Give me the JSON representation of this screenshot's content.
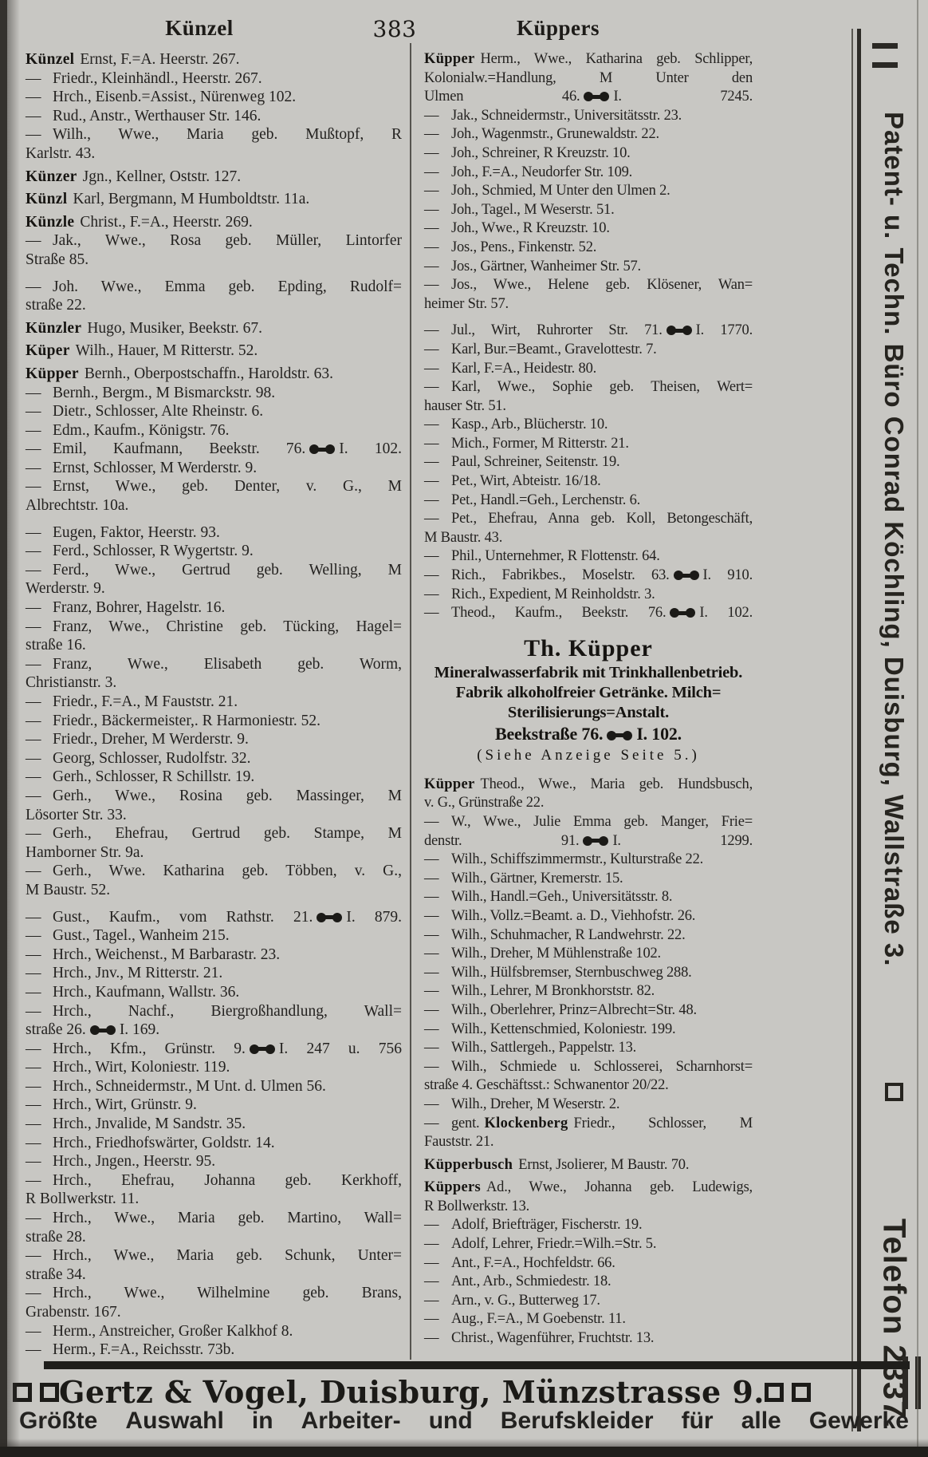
{
  "header": {
    "left_keyword": "Künzel",
    "page_number": "383",
    "right_keyword": "Küppers"
  },
  "columns": {
    "left": [
      {
        "b": "Künzel",
        "lines": [
          "Ernst, F.=A. Heerstr. 267."
        ]
      },
      {
        "d": 1,
        "lines": [
          "Friedr., Kleinhändl., Heerstr. 267."
        ]
      },
      {
        "d": 1,
        "lines": [
          "Hrch., Eisenb.=Assist., Nürenweg 102."
        ]
      },
      {
        "d": 1,
        "lines": [
          "Rud., Anstr., Werthauser Str. 146."
        ]
      },
      {
        "d": 1,
        "lines": [
          "Wilh., Wwe., Maria geb. Mußtopf, R",
          "Karlstr. 43."
        ]
      },
      {
        "b": "Künzer",
        "lines": [
          "Jgn., Kellner, Oststr. 127."
        ]
      },
      {
        "b": "Künzl",
        "lines": [
          "Karl, Bergmann, M Humboldtstr. 11a."
        ]
      },
      {
        "b": "Künzle",
        "lines": [
          "Christ., F.=A., Heerstr. 269."
        ]
      },
      {
        "d": 1,
        "lines": [
          "Jak., Wwe., Rosa geb. Müller, Lintorfer",
          "Straße 85."
        ]
      },
      {
        "d": 1,
        "g": 1,
        "lines": [
          "Joh. Wwe., Emma geb. Epding, Rudolf=",
          "straße 22."
        ]
      },
      {
        "b": "Künzler",
        "lines": [
          "Hugo, Musiker, Beekstr. 67."
        ]
      },
      {
        "b": "Küper",
        "lines": [
          "Wilh., Hauer, M Ritterstr. 52."
        ]
      },
      {
        "b": "Küpper",
        "lines": [
          "Bernh., Oberpostschaffn., Haroldstr. 63."
        ]
      },
      {
        "d": 1,
        "lines": [
          "Bernh., Bergm., M Bismarckstr. 98."
        ]
      },
      {
        "d": 1,
        "lines": [
          "Dietr., Schlosser, Alte Rheinstr. 6."
        ]
      },
      {
        "d": 1,
        "lines": [
          "Edm., Kaufm., Königstr. 76."
        ]
      },
      {
        "d": 1,
        "j": 1,
        "lines": [
          "Emil, Kaufmann, Beekstr. 76."
        ],
        "p": "I. 102."
      },
      {
        "d": 1,
        "lines": [
          "Ernst, Schlosser, M Werderstr. 9."
        ]
      },
      {
        "d": 1,
        "lines": [
          "Ernst, Wwe., geb. Denter, v. G., M",
          "Albrechtstr. 10a."
        ]
      },
      {
        "d": 1,
        "g": 1,
        "lines": [
          "Eugen, Faktor, Heerstr. 93."
        ]
      },
      {
        "d": 1,
        "lines": [
          "Ferd., Schlosser, R Wygertstr. 9."
        ]
      },
      {
        "d": 1,
        "lines": [
          "Ferd., Wwe., Gertrud geb. Welling, M",
          "Werderstr. 9."
        ]
      },
      {
        "d": 1,
        "lines": [
          "Franz, Bohrer, Hagelstr. 16."
        ]
      },
      {
        "d": 1,
        "lines": [
          "Franz, Wwe., Christine geb. Tücking, Hagel=",
          "straße 16."
        ]
      },
      {
        "d": 1,
        "lines": [
          "Franz, Wwe., Elisabeth geb. Worm,",
          "Christianstr. 3."
        ]
      },
      {
        "d": 1,
        "lines": [
          "Friedr., F.=A., M Fauststr. 21."
        ]
      },
      {
        "d": 1,
        "lines": [
          "Friedr., Bäckermeister,. R Harmoniestr. 52."
        ]
      },
      {
        "d": 1,
        "lines": [
          "Friedr., Dreher, M Werderstr. 9."
        ]
      },
      {
        "d": 1,
        "lines": [
          "Georg, Schlosser, Rudolfstr. 32."
        ]
      },
      {
        "d": 1,
        "lines": [
          "Gerh., Schlosser, R Schillstr. 19."
        ]
      },
      {
        "d": 1,
        "lines": [
          "Gerh., Wwe., Rosina geb. Massinger, M",
          "Lösorter Str. 33."
        ]
      },
      {
        "d": 1,
        "lines": [
          "Gerh., Ehefrau, Gertrud geb. Stampe, M",
          "Hamborner Str. 9a."
        ]
      },
      {
        "d": 1,
        "lines": [
          "Gerh., Wwe. Katharina geb. Többen, v. G.,",
          "M Baustr. 52."
        ]
      },
      {
        "d": 1,
        "g": 1,
        "j": 1,
        "lines": [
          "Gust., Kaufm., vom Rathstr. 21."
        ],
        "p": "I. 879."
      },
      {
        "d": 1,
        "lines": [
          "Gust., Tagel., Wanheim 215."
        ]
      },
      {
        "d": 1,
        "lines": [
          "Hrch., Weichenst., M Barbarastr. 23."
        ]
      },
      {
        "d": 1,
        "lines": [
          "Hrch., Jnv., M Ritterstr. 21."
        ]
      },
      {
        "d": 1,
        "lines": [
          "Hrch., Kaufmann, Wallstr. 36."
        ]
      },
      {
        "d": 1,
        "lines": [
          "Hrch., Nachf., Biergroßhandlung, Wall=",
          "straße 26."
        ],
        "p": "I. 169."
      },
      {
        "d": 1,
        "j": 1,
        "lines": [
          "Hrch., Kfm., Grünstr. 9."
        ],
        "p": "I. 247 u. 756"
      },
      {
        "d": 1,
        "lines": [
          "Hrch., Wirt, Koloniestr. 119."
        ]
      },
      {
        "d": 1,
        "lines": [
          "Hrch., Schneidermstr., M Unt. d. Ulmen 56."
        ]
      },
      {
        "d": 1,
        "lines": [
          "Hrch., Wirt, Grünstr. 9."
        ]
      },
      {
        "d": 1,
        "lines": [
          "Hrch., Jnvalide, M Sandstr. 35."
        ]
      },
      {
        "d": 1,
        "lines": [
          "Hrch., Friedhofswärter, Goldstr. 14."
        ]
      },
      {
        "d": 1,
        "lines": [
          "Hrch., Jngen., Heerstr. 95."
        ]
      },
      {
        "d": 1,
        "lines": [
          "Hrch., Ehefrau, Johanna geb. Kerkhoff,",
          "R Bollwerkstr. 11."
        ]
      },
      {
        "d": 1,
        "lines": [
          "Hrch., Wwe., Maria geb. Martino, Wall=",
          "straße 28."
        ]
      },
      {
        "d": 1,
        "lines": [
          "Hrch., Wwe., Maria geb. Schunk, Unter=",
          "straße 34."
        ]
      },
      {
        "d": 1,
        "lines": [
          "Hrch., Wwe., Wilhelmine geb. Brans,",
          "Grabenstr. 167."
        ]
      },
      {
        "d": 1,
        "lines": [
          "Herm., Anstreicher, Großer Kalkhof 8."
        ]
      },
      {
        "d": 1,
        "lines": [
          "Herm., F.=A., Reichsstr. 73b."
        ]
      }
    ],
    "right": [
      {
        "b": "Küpper",
        "j": 1,
        "lines": [
          "Herm., Wwe., Katharina geb. Schlipper,",
          "Kolonialw.=Handlung, M Unter den",
          "Ulmen 46."
        ],
        "p": "I. 7245."
      },
      {
        "d": 1,
        "lines": [
          "Jak., Schneidermstr., Universitätsstr. 23."
        ]
      },
      {
        "d": 1,
        "lines": [
          "Joh., Wagenmstr., Grunewaldstr. 22."
        ]
      },
      {
        "d": 1,
        "lines": [
          "Joh., Schreiner, R Kreuzstr. 10."
        ]
      },
      {
        "d": 1,
        "lines": [
          "Joh., F.=A., Neudorfer Str. 109."
        ]
      },
      {
        "d": 1,
        "lines": [
          "Joh., Schmied, M Unter den Ulmen 2."
        ]
      },
      {
        "d": 1,
        "lines": [
          "Joh., Tagel., M Weserstr. 51."
        ]
      },
      {
        "d": 1,
        "lines": [
          "Joh., Wwe., R Kreuzstr. 10."
        ]
      },
      {
        "d": 1,
        "lines": [
          "Jos., Pens., Finkenstr. 52."
        ]
      },
      {
        "d": 1,
        "lines": [
          "Jos., Gärtner, Wanheimer Str. 57."
        ]
      },
      {
        "d": 1,
        "lines": [
          "Jos., Wwe., Helene geb. Klösener, Wan=",
          "heimer Str. 57."
        ]
      },
      {
        "d": 1,
        "g": 1,
        "j": 1,
        "lines": [
          "Jul., Wirt, Ruhrorter Str. 71."
        ],
        "p": "I. 1770."
      },
      {
        "d": 1,
        "lines": [
          "Karl, Bur.=Beamt., Gravelottestr. 7."
        ]
      },
      {
        "d": 1,
        "lines": [
          "Karl, F.=A., Heidestr. 80."
        ]
      },
      {
        "d": 1,
        "lines": [
          "Karl, Wwe., Sophie geb. Theisen, Wert=",
          "hauser Str. 51."
        ]
      },
      {
        "d": 1,
        "lines": [
          "Kasp., Arb., Blücherstr. 10."
        ]
      },
      {
        "d": 1,
        "lines": [
          "Mich., Former, M Ritterstr. 21."
        ]
      },
      {
        "d": 1,
        "lines": [
          "Paul, Schreiner, Seitenstr. 19."
        ]
      },
      {
        "d": 1,
        "lines": [
          "Pet., Wirt, Abteistr. 16/18."
        ]
      },
      {
        "d": 1,
        "lines": [
          "Pet., Handl.=Geh., Lerchenstr. 6."
        ]
      },
      {
        "d": 1,
        "lines": [
          "Pet., Ehefrau, Anna geb. Koll, Betongeschäft,",
          "M Baustr. 43."
        ]
      },
      {
        "d": 1,
        "lines": [
          "Phil., Unternehmer, R Flottenstr. 64."
        ]
      },
      {
        "d": 1,
        "j": 1,
        "lines": [
          "Rich., Fabrikbes., Moselstr. 63."
        ],
        "p": "I. 910."
      },
      {
        "d": 1,
        "lines": [
          "Rich., Expedient, M Reinholdstr. 3."
        ]
      },
      {
        "d": 1,
        "j": 1,
        "lines": [
          "Theod., Kaufm., Beekstr. 76."
        ],
        "p": "I. 102."
      },
      {
        "type": "ad",
        "title": "Th. Küpper",
        "lines": [
          "Mineralwasserfabrik mit Trinkhallenbetrieb.",
          "Fabrik alkoholfreier Getränke. Milch=",
          "Sterilisierungs=Anstalt."
        ],
        "address": "Beekstraße 76.",
        "phone": "I. 102.",
        "note": "(Siehe Anzeige Seite 5.)"
      },
      {
        "b": "Küpper",
        "lines": [
          "Theod., Wwe., Maria geb. Hundsbusch,",
          "v. G., Grünstraße 22."
        ]
      },
      {
        "d": 1,
        "j": 1,
        "lines": [
          "W., Wwe., Julie Emma geb. Manger, Frie=",
          "denstr. 91."
        ],
        "p": "I. 1299."
      },
      {
        "d": 1,
        "lines": [
          "Wilh., Schiffszimmermstr., Kulturstraße 22."
        ]
      },
      {
        "d": 1,
        "lines": [
          "Wilh., Gärtner, Kremerstr. 15."
        ]
      },
      {
        "d": 1,
        "lines": [
          "Wilh., Handl.=Geh., Universitätsstr. 8."
        ]
      },
      {
        "d": 1,
        "lines": [
          "Wilh., Vollz.=Beamt. a. D., Viehhofstr. 26."
        ]
      },
      {
        "d": 1,
        "lines": [
          "Wilh., Schuhmacher, R Landwehrstr. 22."
        ]
      },
      {
        "d": 1,
        "lines": [
          "Wilh., Dreher, M Mühlenstraße 102."
        ]
      },
      {
        "d": 1,
        "lines": [
          "Wilh., Hülfsbremser, Sternbuschweg 288."
        ]
      },
      {
        "d": 1,
        "lines": [
          "Wilh., Lehrer, M Bronkhorststr. 82."
        ]
      },
      {
        "d": 1,
        "lines": [
          "Wilh., Oberlehrer, Prinz=Albrecht=Str. 48."
        ]
      },
      {
        "d": 1,
        "lines": [
          "Wilh., Kettenschmied, Koloniestr. 199."
        ]
      },
      {
        "d": 1,
        "lines": [
          "Wilh., Sattlergeh., Pappelstr. 13."
        ]
      },
      {
        "d": 1,
        "lines": [
          "Wilh., Schmiede u. Schlosserei, Scharnhorst=",
          "straße 4. Geschäftsst.: Schwanentor 20/22."
        ]
      },
      {
        "d": 1,
        "lines": [
          "Wilh., Dreher, M Weserstr. 2."
        ]
      },
      {
        "d": 1,
        "pre": "gent.",
        "b": "Klockenberg",
        "lines": [
          "Friedr., Schlosser, M",
          "Fauststr. 21."
        ]
      },
      {
        "b": "Küpperbusch",
        "lines": [
          "Ernst, Jsolierer, M Baustr. 70."
        ]
      },
      {
        "b": "Küppers",
        "lines": [
          "Ad., Wwe., Johanna geb. Ludewigs,",
          "R Bollwerkstr. 13."
        ]
      },
      {
        "d": 1,
        "lines": [
          "Adolf, Briefträger, Fischerstr. 19."
        ]
      },
      {
        "d": 1,
        "lines": [
          "Adolf, Lehrer, Friedr.=Wilh.=Str. 5."
        ]
      },
      {
        "d": 1,
        "lines": [
          "Ant., F.=A., Hochfeldstr. 66."
        ]
      },
      {
        "d": 1,
        "lines": [
          "Ant., Arb., Schmiedestr. 18."
        ]
      },
      {
        "d": 1,
        "lines": [
          "Arn., v. G., Butterweg 17."
        ]
      },
      {
        "d": 1,
        "lines": [
          "Aug., F.=A., M Goebenstr. 11."
        ]
      },
      {
        "d": 1,
        "lines": [
          "Christ., Wagenführer, Fruchtstr. 13."
        ]
      }
    ]
  },
  "sidebar": {
    "text": "Patent- u. Techn. Büro Conrad Köchling, Duisburg, Wallstraße 3.",
    "phone": "Telefon 2337."
  },
  "bottom_ad": {
    "title": "Gertz & Vogel, Duisburg, Münzstrasse 9.",
    "subtitle": "Größte Auswahl in Arbeiter- und Berufskleider für alle Gewerke"
  }
}
